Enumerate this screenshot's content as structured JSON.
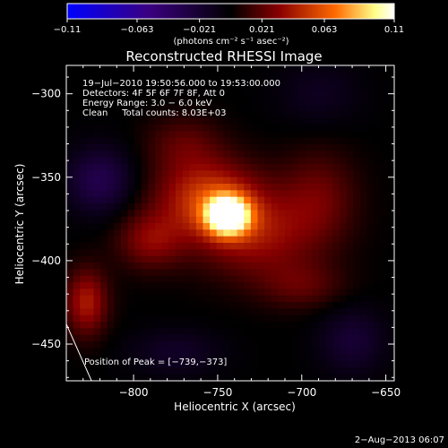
{
  "chart_data": {
    "type": "heatmap",
    "title": "Reconstructed RHESSI Image",
    "xlabel": "Heliocentric X (arcsec)",
    "ylabel": "Heliocentric Y (arcsec)",
    "xlim": [
      -840,
      -645
    ],
    "ylim": [
      -472,
      -283
    ],
    "x_ticks": [
      -800,
      -750,
      -700,
      -650
    ],
    "x_tick_labels": [
      "−800",
      "−750",
      "−700",
      "−650"
    ],
    "y_ticks": [
      -300,
      -350,
      -400,
      -450
    ],
    "y_tick_labels": [
      "−300",
      "−350",
      "−400",
      "−450"
    ],
    "colorbar": {
      "min": -0.11,
      "max": 0.11,
      "ticks": [
        -0.11,
        -0.063,
        -0.021,
        0.021,
        0.063,
        0.11
      ],
      "tick_labels": [
        "−0.11",
        "−0.063",
        "−0.021",
        "0.021",
        "0.063",
        "0.11"
      ],
      "colors": [
        "#0000ff",
        "#3a0080",
        "#000000",
        "#8a0000",
        "#ff6a00",
        "#ffff88",
        "#ffffff"
      ]
    },
    "annotations": [
      "19−Jul−2010 19:50:56.000 to 19:53:00.000",
      "Detectors: 4F 5F 6F 7F 8F, Att 0",
      "Energy Range: 3.0 − 6.0 keV",
      "Clean     Total counts: 8.03E+03"
    ],
    "peak_label": "Position of Peak = [−739,−373]",
    "peak": [
      -739,
      -373
    ],
    "sources": [
      {
        "x": -744,
        "y": -373,
        "sx": 9,
        "sy": 8,
        "amp": 1.0
      },
      {
        "x": -756,
        "y": -362,
        "sx": 22,
        "sy": 16,
        "amp": 0.45
      },
      {
        "x": -728,
        "y": -385,
        "sx": 25,
        "sy": 18,
        "amp": 0.32
      },
      {
        "x": -790,
        "y": -388,
        "sx": 14,
        "sy": 12,
        "amp": 0.28
      },
      {
        "x": -828,
        "y": -425,
        "sx": 9,
        "sy": 14,
        "amp": 0.38
      },
      {
        "x": -690,
        "y": -362,
        "sx": 16,
        "sy": 20,
        "amp": 0.22
      },
      {
        "x": -700,
        "y": -415,
        "sx": 18,
        "sy": 10,
        "amp": 0.18
      },
      {
        "x": -770,
        "y": -330,
        "sx": 16,
        "sy": 12,
        "amp": 0.18
      },
      {
        "x": -820,
        "y": -352,
        "sx": 14,
        "sy": 14,
        "amp": -0.3
      },
      {
        "x": -670,
        "y": -448,
        "sx": 14,
        "sy": 14,
        "amp": -0.2
      },
      {
        "x": -775,
        "y": -455,
        "sx": 20,
        "sy": 10,
        "amp": -0.15
      },
      {
        "x": -690,
        "y": -300,
        "sx": 18,
        "sy": 14,
        "amp": -0.12
      }
    ],
    "limb_line": [
      [
        -840,
        -438
      ],
      [
        -825,
        -472
      ]
    ]
  },
  "timestamp": "2−Aug−2013 06:07",
  "colorbar_unit": "(photons cm⁻² s⁻¹ asec⁻²)"
}
